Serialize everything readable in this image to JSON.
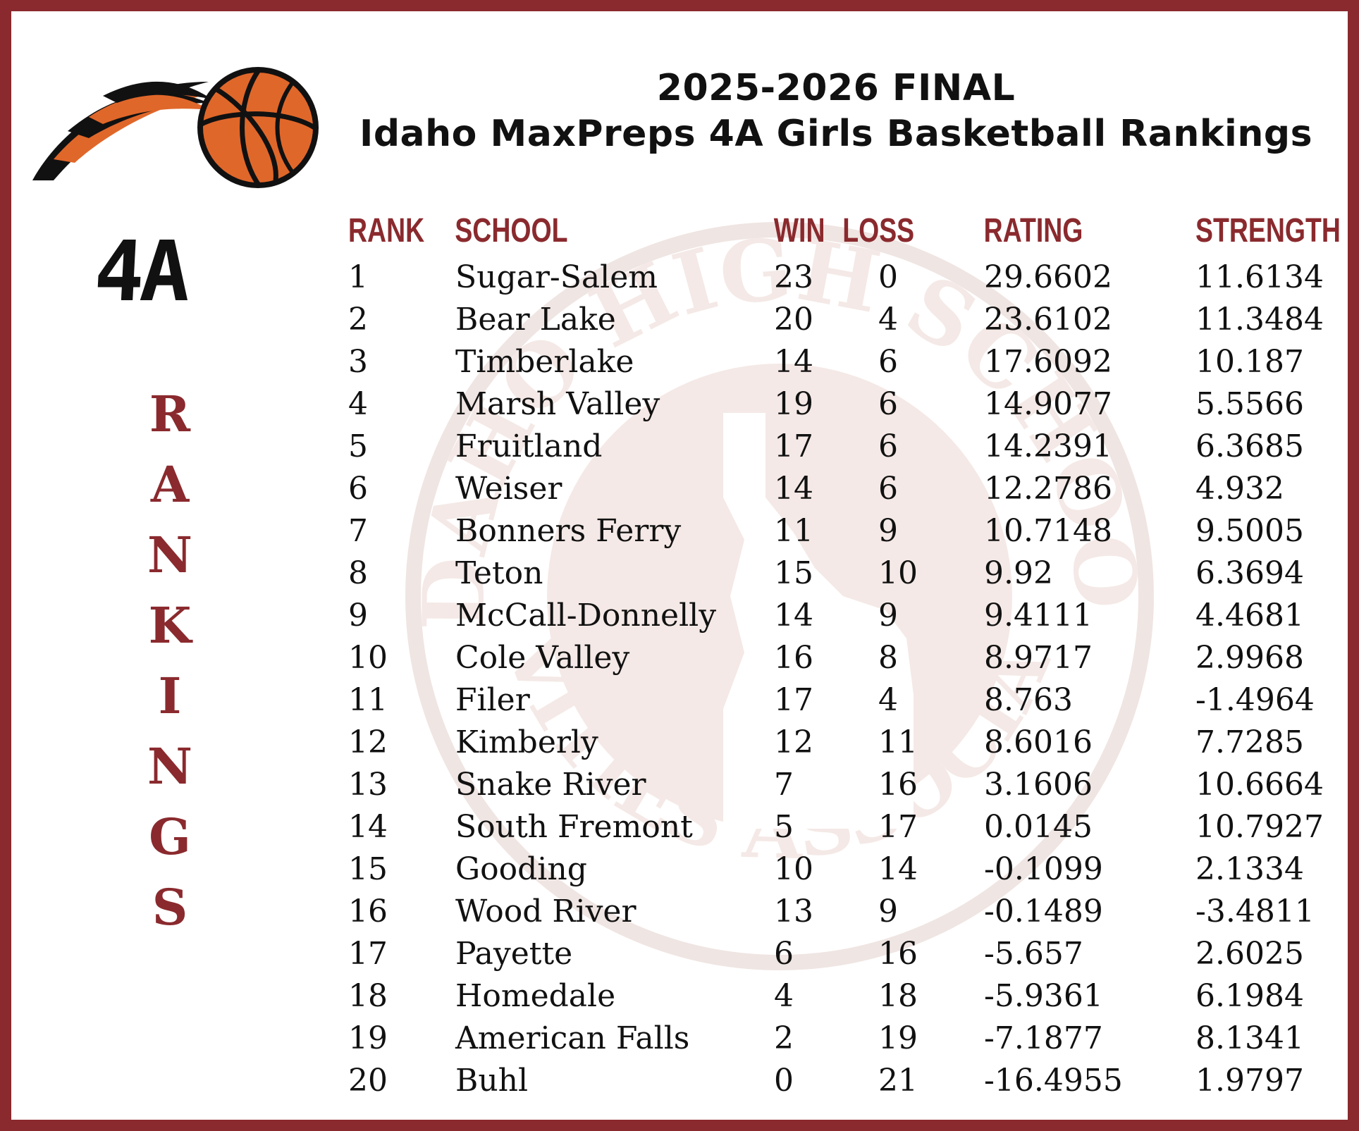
{
  "title": {
    "line1": "2025-2026 FINAL",
    "line2": "Idaho MaxPreps 4A Girls Basketball Rankings"
  },
  "badge": "4A",
  "vertical_word": [
    "R",
    "A",
    "N",
    "K",
    "I",
    "N",
    "G",
    "S"
  ],
  "watermark_text": "IDAHO HIGH SCHOOL ACTIVITIES ASSOCIATION",
  "colors": {
    "accent": "#8a2a2e",
    "ball": "#e0672a"
  },
  "icons": {
    "logo": "basketball-icon"
  },
  "table": {
    "headers": [
      "RANK",
      "SCHOOL",
      "WIN",
      "LOSS",
      "RATING",
      "STRENGTH"
    ],
    "rows": [
      [
        "1",
        "Sugar-Salem",
        "23",
        "0",
        "29.6602",
        "11.6134"
      ],
      [
        "2",
        "Bear Lake",
        "20",
        "4",
        "23.6102",
        "11.3484"
      ],
      [
        "3",
        "Timberlake",
        "14",
        "6",
        "17.6092",
        "10.187"
      ],
      [
        "4",
        "Marsh Valley",
        "19",
        "6",
        "14.9077",
        "5.5566"
      ],
      [
        "5",
        "Fruitland",
        "17",
        "6",
        "14.2391",
        "6.3685"
      ],
      [
        "6",
        "Weiser",
        "14",
        "6",
        "12.2786",
        "4.932"
      ],
      [
        "7",
        "Bonners Ferry",
        "11",
        "9",
        "10.7148",
        "9.5005"
      ],
      [
        "8",
        "Teton",
        "15",
        "10",
        "9.92",
        "6.3694"
      ],
      [
        "9",
        "McCall-Donnelly",
        "14",
        "9",
        "9.4111",
        "4.4681"
      ],
      [
        "10",
        "Cole Valley",
        "16",
        "8",
        "8.9717",
        "2.9968"
      ],
      [
        "11",
        "Filer",
        "17",
        "4",
        "8.763",
        "-1.4964"
      ],
      [
        "12",
        "Kimberly",
        "12",
        "11",
        "8.6016",
        "7.7285"
      ],
      [
        "13",
        "Snake River",
        "7",
        "16",
        "3.1606",
        "10.6664"
      ],
      [
        "14",
        "South Fremont",
        "5",
        "17",
        "0.0145",
        "10.7927"
      ],
      [
        "15",
        "Gooding",
        "10",
        "14",
        "-0.1099",
        "2.1334"
      ],
      [
        "16",
        "Wood River",
        "13",
        "9",
        "-0.1489",
        "-3.4811"
      ],
      [
        "17",
        "Payette",
        "6",
        "16",
        "-5.657",
        "2.6025"
      ],
      [
        "18",
        "Homedale",
        "4",
        "18",
        "-5.9361",
        "6.1984"
      ],
      [
        "19",
        "American Falls",
        "2",
        "19",
        "-7.1877",
        "8.1341"
      ],
      [
        "20",
        "Buhl",
        "0",
        "21",
        "-16.4955",
        "1.9797"
      ]
    ]
  }
}
